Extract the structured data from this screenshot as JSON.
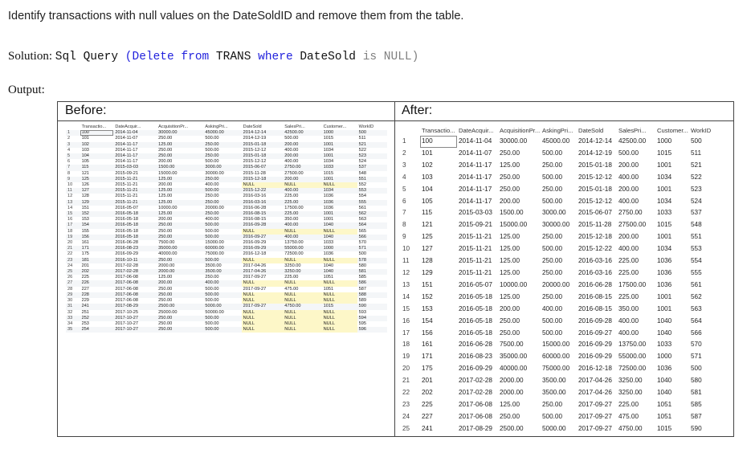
{
  "intro": "Identify transactions with null values on the DateSoldID and remove them from the table.",
  "solution": {
    "label": "Solution:",
    "code_sql": "Sql Query",
    "code_open": "(",
    "code_kw1": "Delete from",
    "code_tbl": "TRANS",
    "code_kw2": "where",
    "code_col": "DateSold",
    "code_is": "is",
    "code_null": "NULL",
    "code_close": ")"
  },
  "output_label": "Output:",
  "before": {
    "title": "Before:",
    "headers": [
      "",
      "Transactio...",
      "DateAcquir...",
      "AcquisitionPr...",
      "AskingPri...",
      "DateSold",
      "SalesPri...",
      "Customer...",
      "WorkID"
    ],
    "rows": [
      [
        "1",
        "100",
        "2014-11-04",
        "30000.00",
        "45000.00",
        "2014-12-14",
        "42500.00",
        "1000",
        "500"
      ],
      [
        "2",
        "101",
        "2014-11-07",
        "250.00",
        "500.00",
        "2014-12-19",
        "500.00",
        "1015",
        "511"
      ],
      [
        "3",
        "102",
        "2014-11-17",
        "125.00",
        "250.00",
        "2015-01-18",
        "200.00",
        "1001",
        "521"
      ],
      [
        "4",
        "103",
        "2014-11-17",
        "250.00",
        "500.00",
        "2015-12-12",
        "400.00",
        "1034",
        "522"
      ],
      [
        "5",
        "104",
        "2014-11-17",
        "250.00",
        "250.00",
        "2015-01-18",
        "200.00",
        "1001",
        "523"
      ],
      [
        "6",
        "105",
        "2014-11-17",
        "200.00",
        "500.00",
        "2015-12-12",
        "400.00",
        "1034",
        "524"
      ],
      [
        "7",
        "115",
        "2015-03-03",
        "1500.00",
        "3000.00",
        "2015-06-07",
        "2750.00",
        "1033",
        "537"
      ],
      [
        "8",
        "121",
        "2015-09-21",
        "15000.00",
        "30000.00",
        "2015-11-28",
        "27500.00",
        "1015",
        "548"
      ],
      [
        "9",
        "125",
        "2015-11-21",
        "125.00",
        "250.00",
        "2015-12-18",
        "200.00",
        "1001",
        "551"
      ],
      [
        "10",
        "126",
        "2015-11-21",
        "200.00",
        "400.00",
        "NULL",
        "NULL",
        "NULL",
        "552"
      ],
      [
        "11",
        "127",
        "2015-11-21",
        "125.00",
        "500.00",
        "2015-12-22",
        "400.00",
        "1034",
        "553"
      ],
      [
        "12",
        "128",
        "2015-11-21",
        "125.00",
        "250.00",
        "2016-03-16",
        "225.00",
        "1036",
        "554"
      ],
      [
        "13",
        "129",
        "2015-11-21",
        "125.00",
        "250.00",
        "2016-03-16",
        "225.00",
        "1036",
        "555"
      ],
      [
        "14",
        "151",
        "2016-05-07",
        "10000.00",
        "20000.00",
        "2016-06-28",
        "17500.00",
        "1036",
        "561"
      ],
      [
        "15",
        "152",
        "2016-05-18",
        "125.00",
        "250.00",
        "2016-08-15",
        "225.00",
        "1001",
        "562"
      ],
      [
        "16",
        "153",
        "2016-05-18",
        "200.00",
        "400.00",
        "2016-08-15",
        "350.00",
        "1001",
        "563"
      ],
      [
        "17",
        "154",
        "2016-05-18",
        "250.00",
        "500.00",
        "2016-09-28",
        "400.00",
        "1040",
        "564"
      ],
      [
        "18",
        "155",
        "2016-05-18",
        "250.00",
        "500.00",
        "NULL",
        "NULL",
        "NULL",
        "565"
      ],
      [
        "19",
        "156",
        "2016-05-18",
        "250.00",
        "500.00",
        "2016-09-27",
        "400.00",
        "1040",
        "566"
      ],
      [
        "20",
        "161",
        "2016-06-28",
        "7500.00",
        "15000.00",
        "2016-09-29",
        "13750.00",
        "1033",
        "570"
      ],
      [
        "21",
        "171",
        "2016-08-23",
        "35000.00",
        "60000.00",
        "2016-09-29",
        "55000.00",
        "1000",
        "571"
      ],
      [
        "22",
        "175",
        "2016-09-29",
        "40000.00",
        "75000.00",
        "2016-12-18",
        "72500.00",
        "1036",
        "500"
      ],
      [
        "23",
        "181",
        "2016-10-11",
        "250.00",
        "500.00",
        "NULL",
        "NULL",
        "NULL",
        "578"
      ],
      [
        "24",
        "201",
        "2017-02-28",
        "2000.00",
        "3500.00",
        "2017-04-26",
        "3250.00",
        "1040",
        "580"
      ],
      [
        "25",
        "202",
        "2017-02-28",
        "2000.00",
        "3500.00",
        "2017-04-26",
        "3250.00",
        "1040",
        "581"
      ],
      [
        "26",
        "225",
        "2017-06-08",
        "125.00",
        "250.00",
        "2017-09-27",
        "225.00",
        "1051",
        "585"
      ],
      [
        "27",
        "226",
        "2017-06-08",
        "200.00",
        "400.00",
        "NULL",
        "NULL",
        "NULL",
        "586"
      ],
      [
        "28",
        "227",
        "2017-06-08",
        "250.00",
        "500.00",
        "2017-09-27",
        "475.00",
        "1051",
        "587"
      ],
      [
        "29",
        "228",
        "2017-06-08",
        "250.00",
        "500.00",
        "NULL",
        "NULL",
        "NULL",
        "588"
      ],
      [
        "30",
        "229",
        "2017-06-08",
        "250.00",
        "500.00",
        "NULL",
        "NULL",
        "NULL",
        "589"
      ],
      [
        "31",
        "241",
        "2017-08-29",
        "2500.00",
        "5000.00",
        "2017-09-27",
        "4750.00",
        "1015",
        "590"
      ],
      [
        "32",
        "251",
        "2017-10-25",
        "25000.00",
        "50000.00",
        "NULL",
        "NULL",
        "NULL",
        "593"
      ],
      [
        "33",
        "252",
        "2017-10-27",
        "250.00",
        "500.00",
        "NULL",
        "NULL",
        "NULL",
        "594"
      ],
      [
        "34",
        "253",
        "2017-10-27",
        "250.00",
        "500.00",
        "NULL",
        "NULL",
        "NULL",
        "595"
      ],
      [
        "35",
        "254",
        "2017-10-27",
        "250.00",
        "500.00",
        "NULL",
        "NULL",
        "NULL",
        "596"
      ]
    ]
  },
  "after": {
    "title": "After:",
    "headers": [
      "",
      "Transactio...",
      "DateAcquir...",
      "AcquisitionPr...",
      "AskingPri...",
      "DateSold",
      "SalesPri...",
      "Customer...",
      "WorkID"
    ],
    "rows": [
      [
        "1",
        "100",
        "2014-11-04",
        "30000.00",
        "45000.00",
        "2014-12-14",
        "42500.00",
        "1000",
        "500"
      ],
      [
        "2",
        "101",
        "2014-11-07",
        "250.00",
        "500.00",
        "2014-12-19",
        "500.00",
        "1015",
        "511"
      ],
      [
        "3",
        "102",
        "2014-11-17",
        "125.00",
        "250.00",
        "2015-01-18",
        "200.00",
        "1001",
        "521"
      ],
      [
        "4",
        "103",
        "2014-11-17",
        "250.00",
        "500.00",
        "2015-12-12",
        "400.00",
        "1034",
        "522"
      ],
      [
        "5",
        "104",
        "2014-11-17",
        "250.00",
        "250.00",
        "2015-01-18",
        "200.00",
        "1001",
        "523"
      ],
      [
        "6",
        "105",
        "2014-11-17",
        "200.00",
        "500.00",
        "2015-12-12",
        "400.00",
        "1034",
        "524"
      ],
      [
        "7",
        "115",
        "2015-03-03",
        "1500.00",
        "3000.00",
        "2015-06-07",
        "2750.00",
        "1033",
        "537"
      ],
      [
        "8",
        "121",
        "2015-09-21",
        "15000.00",
        "30000.00",
        "2015-11-28",
        "27500.00",
        "1015",
        "548"
      ],
      [
        "9",
        "125",
        "2015-11-21",
        "125.00",
        "250.00",
        "2015-12-18",
        "200.00",
        "1001",
        "551"
      ],
      [
        "10",
        "127",
        "2015-11-21",
        "125.00",
        "500.00",
        "2015-12-22",
        "400.00",
        "1034",
        "553"
      ],
      [
        "11",
        "128",
        "2015-11-21",
        "125.00",
        "250.00",
        "2016-03-16",
        "225.00",
        "1036",
        "554"
      ],
      [
        "12",
        "129",
        "2015-11-21",
        "125.00",
        "250.00",
        "2016-03-16",
        "225.00",
        "1036",
        "555"
      ],
      [
        "13",
        "151",
        "2016-05-07",
        "10000.00",
        "20000.00",
        "2016-06-28",
        "17500.00",
        "1036",
        "561"
      ],
      [
        "14",
        "152",
        "2016-05-18",
        "125.00",
        "250.00",
        "2016-08-15",
        "225.00",
        "1001",
        "562"
      ],
      [
        "15",
        "153",
        "2016-05-18",
        "200.00",
        "400.00",
        "2016-08-15",
        "350.00",
        "1001",
        "563"
      ],
      [
        "16",
        "154",
        "2016-05-18",
        "250.00",
        "500.00",
        "2016-09-28",
        "400.00",
        "1040",
        "564"
      ],
      [
        "17",
        "156",
        "2016-05-18",
        "250.00",
        "500.00",
        "2016-09-27",
        "400.00",
        "1040",
        "566"
      ],
      [
        "18",
        "161",
        "2016-06-28",
        "7500.00",
        "15000.00",
        "2016-09-29",
        "13750.00",
        "1033",
        "570"
      ],
      [
        "19",
        "171",
        "2016-08-23",
        "35000.00",
        "60000.00",
        "2016-09-29",
        "55000.00",
        "1000",
        "571"
      ],
      [
        "20",
        "175",
        "2016-09-29",
        "40000.00",
        "75000.00",
        "2016-12-18",
        "72500.00",
        "1036",
        "500"
      ],
      [
        "21",
        "201",
        "2017-02-28",
        "2000.00",
        "3500.00",
        "2017-04-26",
        "3250.00",
        "1040",
        "580"
      ],
      [
        "22",
        "202",
        "2017-02-28",
        "2000.00",
        "3500.00",
        "2017-04-26",
        "3250.00",
        "1040",
        "581"
      ],
      [
        "23",
        "225",
        "2017-06-08",
        "125.00",
        "250.00",
        "2017-09-27",
        "225.00",
        "1051",
        "585"
      ],
      [
        "24",
        "227",
        "2017-06-08",
        "250.00",
        "500.00",
        "2017-09-27",
        "475.00",
        "1051",
        "587"
      ],
      [
        "25",
        "241",
        "2017-08-29",
        "2500.00",
        "5000.00",
        "2017-09-27",
        "4750.00",
        "1015",
        "590"
      ]
    ]
  }
}
